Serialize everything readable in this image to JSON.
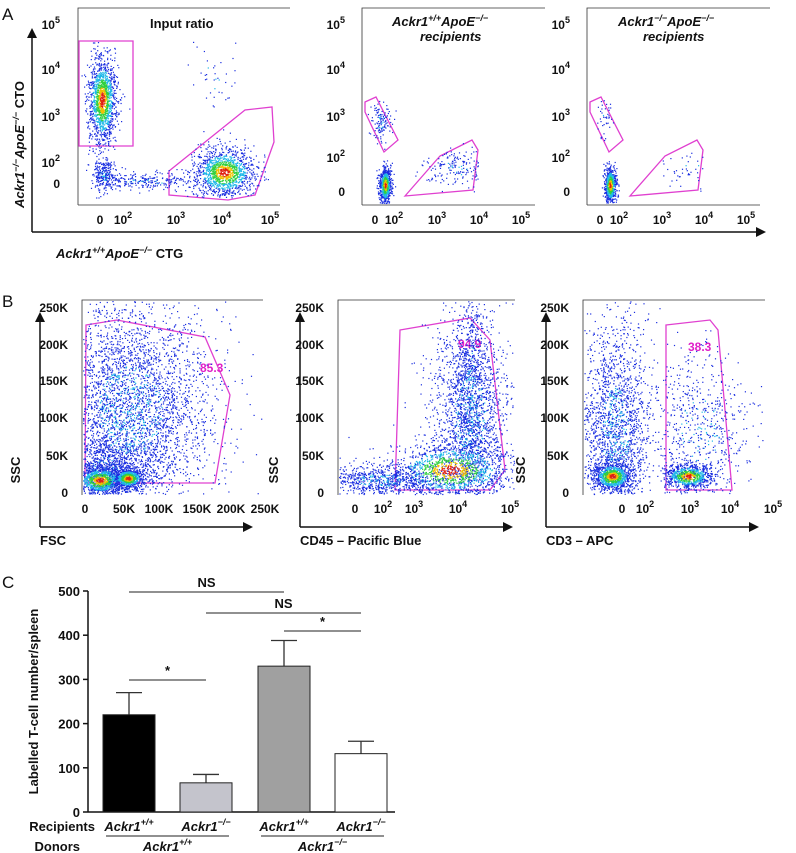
{
  "panels": {
    "a": "A",
    "b": "B",
    "c": "C"
  },
  "panel_a": {
    "plot_titles": [
      "Input ratio",
      "Ackr1+/+ApoE−/− recipients",
      "Ackr1−/−ApoE−/− recipients"
    ],
    "title_parts": {
      "t1": "Input ratio",
      "t2_gene": "Ackr1",
      "t2_sup1": "+/+",
      "t2_gene2": "ApoE",
      "t2_sup2": "−/−",
      "t2_line2": "recipients",
      "t3_gene": "Ackr1",
      "t3_sup1": "−/−",
      "t3_gene2": "ApoE",
      "t3_sup2": "−/−",
      "t3_line2": "recipients"
    },
    "y_label": {
      "gene": "Ackr1",
      "sup1": "−/−",
      "gene2": "ApoE",
      "sup2": "−/−",
      "marker": " CTO"
    },
    "x_label": {
      "gene": "Ackr1",
      "sup1": "+/+",
      "gene2": "ApoE",
      "sup2": "−/−",
      "marker": " CTG"
    },
    "y_ticks": [
      "10",
      "10",
      "10",
      "10",
      "0"
    ],
    "y_tick_exp": [
      "5",
      "4",
      "3",
      "2",
      ""
    ],
    "x_ticks": [
      "0",
      "10",
      "10",
      "10",
      "10"
    ],
    "x_tick_exp": [
      "",
      "2",
      "3",
      "4",
      "5"
    ]
  },
  "panel_b": {
    "plots": [
      {
        "x_label": "FSC",
        "y_label": "SSC",
        "gate_pct": "85.3"
      },
      {
        "x_label": "CD45 – Pacific Blue",
        "y_label": "SSC",
        "gate_pct": "94.9"
      },
      {
        "x_label": "CD3 – APC",
        "y_label": "SSC",
        "gate_pct": "38.3"
      }
    ],
    "y_ticks": [
      "250K",
      "200K",
      "150K",
      "100K",
      "50K",
      "0"
    ],
    "x_ticks_linear": [
      "0",
      "50K",
      "100K",
      "150K",
      "200K",
      "250K"
    ],
    "x_ticks_log": [
      "0",
      "10",
      "10",
      "10",
      "10"
    ],
    "x_tick_exp": [
      "",
      "2",
      "3",
      "4",
      "5"
    ]
  },
  "gate_color": "#e040d0",
  "chart_data": {
    "type": "bar",
    "ylabel": "Labelled T-cell number/spleen",
    "ylim": [
      0,
      500
    ],
    "y_ticks": [
      "0",
      "100",
      "200",
      "300",
      "400",
      "500"
    ],
    "row_labels": {
      "recipients": "Recipients",
      "donors": "Donors"
    },
    "categories": [
      {
        "recipient": "Ackr1",
        "recipient_sup": "+/+",
        "donor": "Ackr1+/+"
      },
      {
        "recipient": "Ackr1",
        "recipient_sup": "−/−",
        "donor": "Ackr1+/+"
      },
      {
        "recipient": "Ackr1",
        "recipient_sup": "+/+",
        "donor": "Ackr1−/−"
      },
      {
        "recipient": "Ackr1",
        "recipient_sup": "−/−",
        "donor": "Ackr1−/−"
      }
    ],
    "donor_groups": [
      {
        "gene": "Ackr1",
        "sup": "+/+"
      },
      {
        "gene": "Ackr1",
        "sup": "−/−"
      }
    ],
    "values": [
      220,
      66,
      330,
      132
    ],
    "errors_upper": [
      270,
      85,
      388,
      160
    ],
    "bar_colors": [
      "#000000",
      "#c4c4cc",
      "#a0a0a0",
      "#ffffff"
    ],
    "significance": [
      {
        "label": "NS",
        "from": 0,
        "to": 2
      },
      {
        "label": "NS",
        "from": 1,
        "to": 3
      },
      {
        "label": "*",
        "from": 2,
        "to": 3
      },
      {
        "label": "*",
        "from": 0,
        "to": 1
      }
    ]
  }
}
